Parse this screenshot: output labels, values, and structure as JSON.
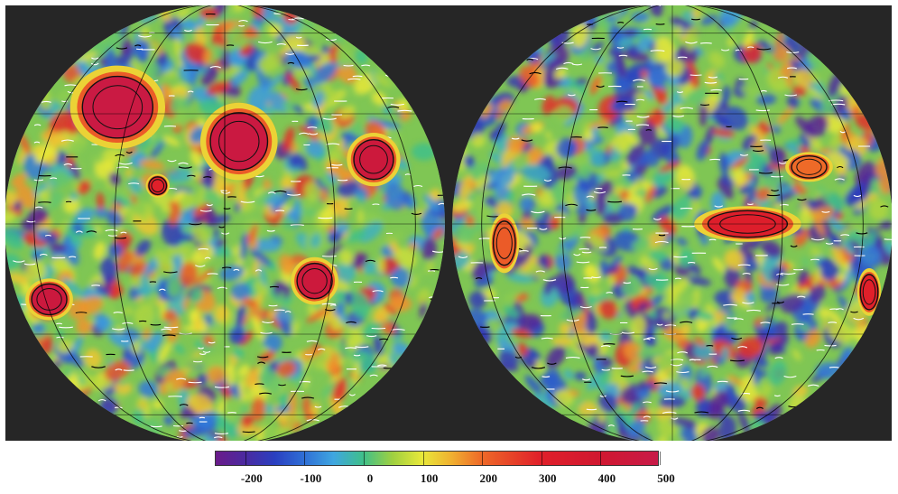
{
  "colorbar": {
    "stops": [
      {
        "value": -250,
        "color": "#6a1b8a"
      },
      {
        "value": -200,
        "color": "#4b2aa0"
      },
      {
        "value": -150,
        "color": "#2a3fc0"
      },
      {
        "value": -100,
        "color": "#2f6fd6"
      },
      {
        "value": -50,
        "color": "#3fa6e0"
      },
      {
        "value": 0,
        "color": "#3fbf8a"
      },
      {
        "value": 50,
        "color": "#9fd040"
      },
      {
        "value": 100,
        "color": "#e8e83a"
      },
      {
        "value": 150,
        "color": "#f0b030"
      },
      {
        "value": 200,
        "color": "#ee6a28"
      },
      {
        "value": 300,
        "color": "#e0202a"
      },
      {
        "value": 400,
        "color": "#d01830"
      },
      {
        "value": 500,
        "color": "#c81a48"
      }
    ],
    "tick_values": [
      -200,
      -100,
      0,
      100,
      200,
      300,
      400,
      500
    ],
    "tick_labels": [
      "-200",
      "-100",
      "0",
      "100",
      "200",
      "300",
      "400",
      "500"
    ]
  },
  "hemispheres": [
    {
      "id": "left",
      "background_color": "#7fc654",
      "mascons": [
        {
          "lon": -35,
          "lat": 32,
          "rx": 0.16,
          "ry": 0.14,
          "value": 480
        },
        {
          "lon": 4,
          "lat": 22,
          "rx": 0.13,
          "ry": 0.13,
          "value": 470
        },
        {
          "lon": 45,
          "lat": 17,
          "rx": 0.09,
          "ry": 0.09,
          "value": 450
        },
        {
          "lon": -58,
          "lat": -20,
          "rx": 0.08,
          "ry": 0.07,
          "value": 460
        },
        {
          "lon": 25,
          "lat": -15,
          "rx": 0.08,
          "ry": 0.08,
          "value": 450
        },
        {
          "lon": -18,
          "lat": 10,
          "rx": 0.04,
          "ry": 0.04,
          "value": 300
        }
      ]
    },
    {
      "id": "right",
      "background_color": "#7fc654",
      "mascons": [
        {
          "lon": 20,
          "lat": 0,
          "rx": 0.18,
          "ry": 0.06,
          "value": 320
        },
        {
          "lon": -50,
          "lat": -5,
          "rx": 0.05,
          "ry": 0.1,
          "value": 220
        },
        {
          "lon": 70,
          "lat": -18,
          "rx": 0.04,
          "ry": 0.08,
          "value": 300
        },
        {
          "lon": 40,
          "lat": 15,
          "rx": 0.08,
          "ry": 0.05,
          "value": 200
        }
      ]
    }
  ]
}
